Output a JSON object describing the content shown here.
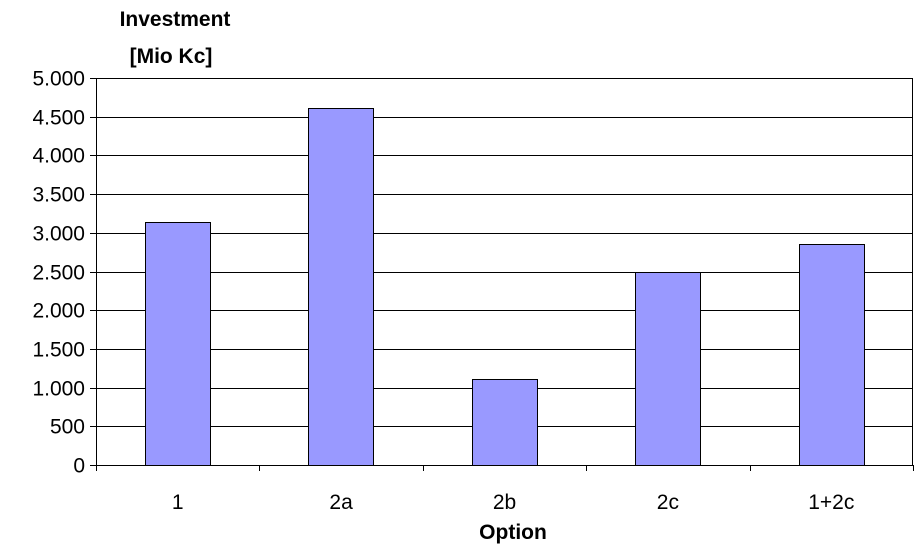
{
  "chart_data": {
    "type": "bar",
    "title": "",
    "ylabel_lines": [
      "Investment",
      "[Mio Kc]"
    ],
    "xlabel": "Option",
    "categories": [
      "1",
      "2a",
      "2b",
      "2c",
      "1+2c"
    ],
    "values": [
      3140,
      4610,
      1110,
      2490,
      2850
    ],
    "ylim": [
      0,
      5000
    ],
    "yticks": [
      0,
      500,
      1000,
      1500,
      2000,
      2500,
      3000,
      3500,
      4000,
      4500,
      5000
    ],
    "ytick_labels": [
      "0",
      "500",
      "1.000",
      "1.500",
      "2.000",
      "2.500",
      "3.000",
      "3.500",
      "4.000",
      "4.500",
      "5.000"
    ],
    "grid": true,
    "legend": "none",
    "bar_color": "#9999ff"
  }
}
